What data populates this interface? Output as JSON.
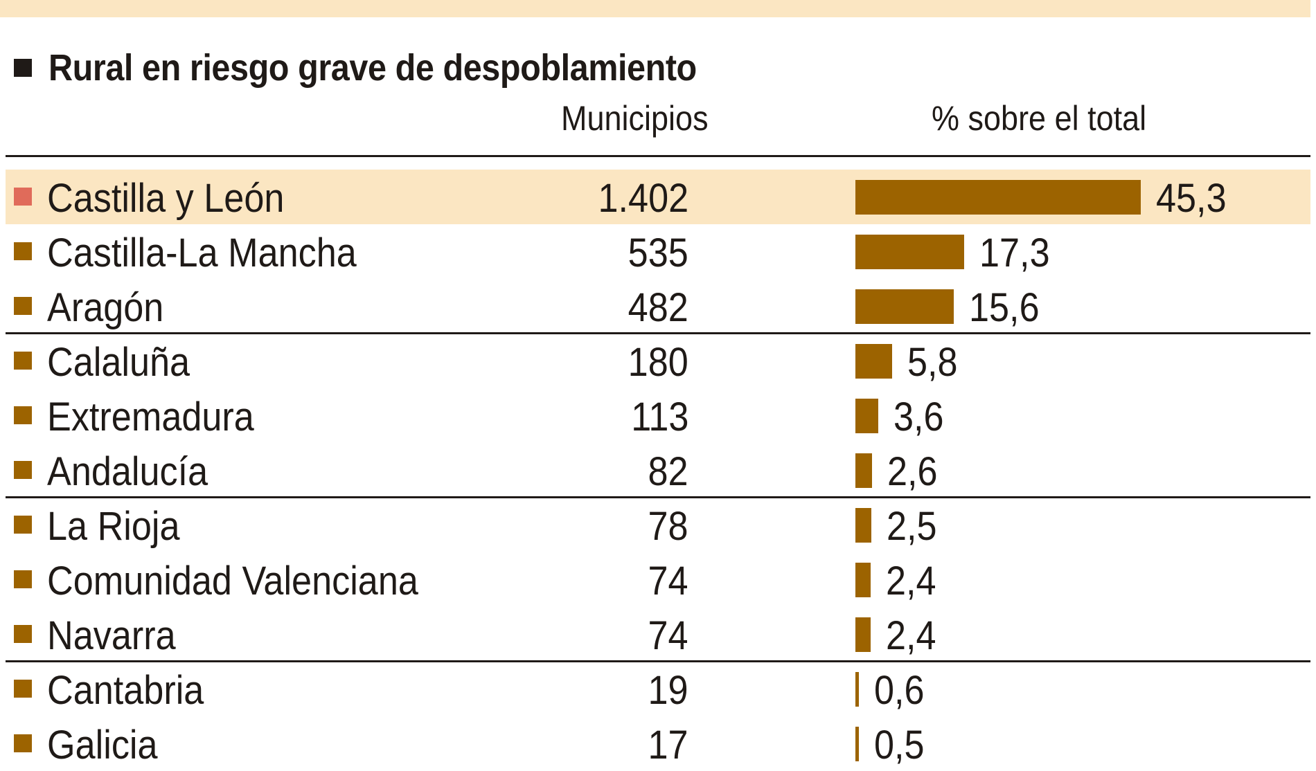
{
  "chart_data": {
    "type": "bar",
    "title": "Rural en riesgo grave de despoblamiento",
    "columns": {
      "municipios": "Municipios",
      "percent": "% sobre el total"
    },
    "rows": [
      {
        "region": "Castilla y León",
        "municipios": "1.402",
        "percent": 45.3,
        "percent_label": "45,3",
        "highlight": true
      },
      {
        "region": "Castilla-La Mancha",
        "municipios": "535",
        "percent": 17.3,
        "percent_label": "17,3"
      },
      {
        "region": "Aragón",
        "municipios": "482",
        "percent": 15.6,
        "percent_label": "15,6"
      },
      {
        "region": "Calaluña",
        "municipios": "180",
        "percent": 5.8,
        "percent_label": "5,8"
      },
      {
        "region": "Extremadura",
        "municipios": "113",
        "percent": 3.6,
        "percent_label": "3,6"
      },
      {
        "region": "Andalucía",
        "municipios": "82",
        "percent": 2.6,
        "percent_label": "2,6"
      },
      {
        "region": "La Rioja",
        "municipios": "78",
        "percent": 2.5,
        "percent_label": "2,5"
      },
      {
        "region": "Comunidad Valenciana",
        "municipios": "74",
        "percent": 2.4,
        "percent_label": "2,4"
      },
      {
        "region": "Navarra",
        "municipios": "74",
        "percent": 2.4,
        "percent_label": "2,4"
      },
      {
        "region": "Cantabria",
        "municipios": "19",
        "percent": 0.6,
        "percent_label": "0,6"
      },
      {
        "region": "Galicia",
        "municipios": "17",
        "percent": 0.5,
        "percent_label": "0,5"
      }
    ],
    "colors": {
      "bar": "#9c6300",
      "highlight_background": "#fbe6c2",
      "highlight_marker": "#e06b5a",
      "marker": "#9c6300"
    }
  }
}
